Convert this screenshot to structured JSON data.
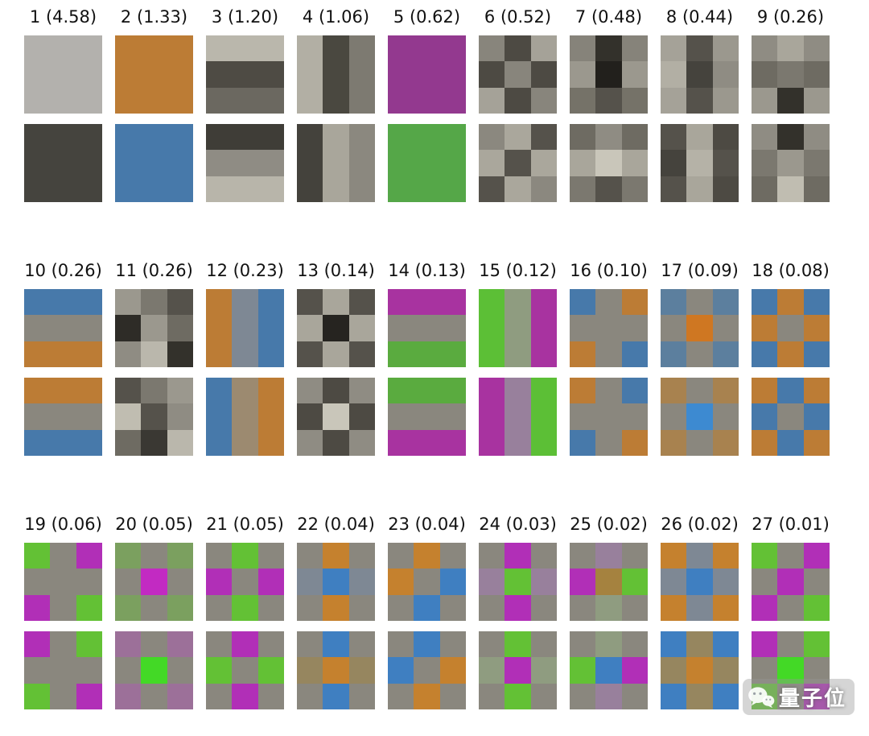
{
  "watermark": {
    "text": "量子位",
    "icon": "wechat-bubble-icon"
  },
  "colors": {
    "background": "#ffffff",
    "label_text": "#111111"
  },
  "chart_data": {
    "type": "heatmap",
    "title": "",
    "xlabel": "",
    "ylabel": "",
    "description": "27 principal components of 3x3 RGB image patches, ordered by eigenvalue. Each component is labeled 'index (eigenvalue)' and shown as two 3x3 color patches: positive direction (top) and negative direction (bottom). Arranged in 3 rows of 9 components.",
    "patch_grid": 3,
    "rows_of_components": 3,
    "components_per_row": 9,
    "component_indices": [
      1,
      2,
      3,
      4,
      5,
      6,
      7,
      8,
      9,
      10,
      11,
      12,
      13,
      14,
      15,
      16,
      17,
      18,
      19,
      20,
      21,
      22,
      23,
      24,
      25,
      26,
      27
    ],
    "eigenvalues": [
      4.58,
      1.33,
      1.2,
      1.06,
      0.62,
      0.52,
      0.48,
      0.44,
      0.26,
      0.26,
      0.26,
      0.23,
      0.14,
      0.13,
      0.12,
      0.1,
      0.09,
      0.08,
      0.06,
      0.05,
      0.05,
      0.04,
      0.04,
      0.03,
      0.02,
      0.02,
      0.01
    ],
    "components": [
      {
        "index": 1,
        "eigenvalue": 4.58,
        "label": "1 (4.58)",
        "positive": [
          "#b3b1ad",
          "#b3b1ad",
          "#b3b1ad",
          "#b3b1ad",
          "#b3b1ad",
          "#b3b1ad",
          "#b3b1ad",
          "#b3b1ad",
          "#b3b1ad"
        ],
        "negative": [
          "#45443e",
          "#45443e",
          "#45443e",
          "#45443e",
          "#45443e",
          "#45443e",
          "#45443e",
          "#45443e",
          "#45443e"
        ]
      },
      {
        "index": 2,
        "eigenvalue": 1.33,
        "label": "2 (1.33)",
        "positive": [
          "#bc7c35",
          "#bc7c35",
          "#bc7c35",
          "#bc7c35",
          "#bc7c35",
          "#bc7c35",
          "#bc7c35",
          "#bc7c35",
          "#bc7c35"
        ],
        "negative": [
          "#4779aa",
          "#4779aa",
          "#4779aa",
          "#4779aa",
          "#4779aa",
          "#4779aa",
          "#4779aa",
          "#4779aa",
          "#4779aa"
        ]
      },
      {
        "index": 3,
        "eigenvalue": 1.2,
        "label": "3 (1.20)",
        "positive": [
          "#bab7ac",
          "#bab7ac",
          "#bab7ac",
          "#4e4b44",
          "#4e4b44",
          "#4e4b44",
          "#6b6860",
          "#6b6860",
          "#6b6860"
        ],
        "negative": [
          "#3f3d37",
          "#3f3d37",
          "#3f3d37",
          "#8f8c84",
          "#8f8c84",
          "#8f8c84",
          "#b8b5aa",
          "#b8b5aa",
          "#b8b5aa"
        ]
      },
      {
        "index": 4,
        "eigenvalue": 1.06,
        "label": "4 (1.06)",
        "positive": [
          "#b2afa4",
          "#4a4840",
          "#7d7a71",
          "#b2afa4",
          "#4a4840",
          "#7d7a71",
          "#b2afa4",
          "#4a4840",
          "#7d7a71"
        ],
        "negative": [
          "#44423c",
          "#a9a69b",
          "#8b887f",
          "#44423c",
          "#a9a69b",
          "#8b887f",
          "#44423c",
          "#a9a69b",
          "#8b887f"
        ]
      },
      {
        "index": 5,
        "eigenvalue": 0.62,
        "label": "5 (0.62)",
        "positive": [
          "#93398f",
          "#93398f",
          "#93398f",
          "#93398f",
          "#93398f",
          "#93398f",
          "#93398f",
          "#93398f",
          "#93398f"
        ],
        "negative": [
          "#55a748",
          "#55a748",
          "#55a748",
          "#55a748",
          "#55a748",
          "#55a748",
          "#55a748",
          "#55a748",
          "#55a748"
        ]
      },
      {
        "index": 6,
        "eigenvalue": 0.52,
        "label": "6 (0.52)",
        "positive": [
          "#88857c",
          "#4d4a43",
          "#a5a298",
          "#4d4a43",
          "#88857c",
          "#4d4a43",
          "#a5a298",
          "#4d4a43",
          "#88857c"
        ],
        "negative": [
          "#8b887f",
          "#aaa79c",
          "#55524b",
          "#aaa79c",
          "#55524b",
          "#aaa79c",
          "#55524b",
          "#aaa79c",
          "#8b887f"
        ]
      },
      {
        "index": 7,
        "eigenvalue": 0.48,
        "label": "7 (0.48)",
        "positive": [
          "#86837a",
          "#33312b",
          "#86837a",
          "#9b988e",
          "#22201c",
          "#9b988e",
          "#757268",
          "#55524b",
          "#757268"
        ],
        "negative": [
          "#6e6b62",
          "#8f8c83",
          "#6e6b62",
          "#a9a69b",
          "#c9c6ba",
          "#a9a69b",
          "#7b786f",
          "#55524b",
          "#7b786f"
        ]
      },
      {
        "index": 8,
        "eigenvalue": 0.44,
        "label": "8 (0.44)",
        "positive": [
          "#a5a298",
          "#55524b",
          "#9b988e",
          "#b2afa4",
          "#45433d",
          "#8f8c83",
          "#a5a298",
          "#55524b",
          "#9b988e"
        ],
        "negative": [
          "#55524b",
          "#a9a69b",
          "#4d4a43",
          "#45433d",
          "#b5b2a7",
          "#55524b",
          "#55524b",
          "#a9a69b",
          "#4d4a43"
        ]
      },
      {
        "index": 9,
        "eigenvalue": 0.26,
        "label": "9 (0.26)",
        "positive": [
          "#8f8c83",
          "#a9a69b",
          "#8f8c83",
          "#6e6b62",
          "#7b786f",
          "#6e6b62",
          "#9b988e",
          "#33312b",
          "#9b988e"
        ],
        "negative": [
          "#8f8c83",
          "#33312b",
          "#8f8c83",
          "#7b786f",
          "#9b988e",
          "#7b786f",
          "#6e6b62",
          "#c0bdb1",
          "#6e6b62"
        ]
      },
      {
        "index": 10,
        "eigenvalue": 0.26,
        "label": "10 (0.26)",
        "positive": [
          "#4779aa",
          "#4779aa",
          "#4779aa",
          "#8a877e",
          "#8a877e",
          "#8a877e",
          "#bc7c35",
          "#bc7c35",
          "#bc7c35"
        ],
        "negative": [
          "#bc7c35",
          "#bc7c35",
          "#bc7c35",
          "#8a877e",
          "#8a877e",
          "#8a877e",
          "#4779aa",
          "#4779aa",
          "#4779aa"
        ]
      },
      {
        "index": 11,
        "eigenvalue": 0.26,
        "label": "11 (0.26)",
        "positive": [
          "#9b988e",
          "#7b786f",
          "#55524b",
          "#2e2c27",
          "#9b988e",
          "#6e6b62",
          "#8f8c83",
          "#bab7ac",
          "#33312b"
        ],
        "negative": [
          "#55524b",
          "#7b786f",
          "#9b988e",
          "#c0bdb1",
          "#55524b",
          "#8f8c83",
          "#6e6b62",
          "#3a3833",
          "#bab7ac"
        ]
      },
      {
        "index": 12,
        "eigenvalue": 0.23,
        "label": "12 (0.23)",
        "positive": [
          "#bc7c35",
          "#7e8894",
          "#4779aa",
          "#bc7c35",
          "#7e8894",
          "#4779aa",
          "#bc7c35",
          "#7e8894",
          "#4779aa"
        ],
        "negative": [
          "#4779aa",
          "#9c8a70",
          "#bc7c35",
          "#4779aa",
          "#9c8a70",
          "#bc7c35",
          "#4779aa",
          "#9c8a70",
          "#bc7c35"
        ]
      },
      {
        "index": 13,
        "eigenvalue": 0.14,
        "label": "13 (0.14)",
        "positive": [
          "#55524b",
          "#a9a69b",
          "#55524b",
          "#a9a69b",
          "#262420",
          "#a9a69b",
          "#55524b",
          "#a9a69b",
          "#55524b"
        ],
        "negative": [
          "#8f8c83",
          "#4d4a43",
          "#8f8c83",
          "#4d4a43",
          "#c9c6ba",
          "#4d4a43",
          "#8f8c83",
          "#4d4a43",
          "#8f8c83"
        ]
      },
      {
        "index": 14,
        "eigenvalue": 0.13,
        "label": "14 (0.13)",
        "positive": [
          "#a833a0",
          "#a833a0",
          "#a833a0",
          "#8a877e",
          "#8a877e",
          "#8a877e",
          "#5aab3f",
          "#5aab3f",
          "#5aab3f"
        ],
        "negative": [
          "#5aab3f",
          "#5aab3f",
          "#5aab3f",
          "#8a877e",
          "#8a877e",
          "#8a877e",
          "#a833a0",
          "#a833a0",
          "#a833a0"
        ]
      },
      {
        "index": 15,
        "eigenvalue": 0.12,
        "label": "15 (0.12)",
        "positive": [
          "#5cbf36",
          "#8f9c80",
          "#a833a0",
          "#5cbf36",
          "#8f9c80",
          "#a833a0",
          "#5cbf36",
          "#8f9c80",
          "#a833a0"
        ],
        "negative": [
          "#a833a0",
          "#98809c",
          "#5cbf36",
          "#a833a0",
          "#98809c",
          "#5cbf36",
          "#a833a0",
          "#98809c",
          "#5cbf36"
        ]
      },
      {
        "index": 16,
        "eigenvalue": 0.1,
        "label": "16 (0.10)",
        "positive": [
          "#4779aa",
          "#8a877e",
          "#bc7c35",
          "#8a877e",
          "#8a877e",
          "#8a877e",
          "#bc7c35",
          "#8a877e",
          "#4779aa"
        ],
        "negative": [
          "#bc7c35",
          "#8a877e",
          "#4779aa",
          "#8a877e",
          "#8a877e",
          "#8a877e",
          "#4779aa",
          "#8a877e",
          "#bc7c35"
        ]
      },
      {
        "index": 17,
        "eigenvalue": 0.09,
        "label": "17 (0.09)",
        "positive": [
          "#5c7f9e",
          "#8a877e",
          "#5c7f9e",
          "#8a877e",
          "#cf7722",
          "#8a877e",
          "#5c7f9e",
          "#8a877e",
          "#5c7f9e"
        ],
        "negative": [
          "#a8824f",
          "#8a877e",
          "#a8824f",
          "#8a877e",
          "#3d8ad1",
          "#8a877e",
          "#a8824f",
          "#8a877e",
          "#a8824f"
        ]
      },
      {
        "index": 18,
        "eigenvalue": 0.08,
        "label": "18 (0.08)",
        "positive": [
          "#4779aa",
          "#bc7c35",
          "#4779aa",
          "#bc7c35",
          "#8a877e",
          "#bc7c35",
          "#4779aa",
          "#bc7c35",
          "#4779aa"
        ],
        "negative": [
          "#bc7c35",
          "#4779aa",
          "#bc7c35",
          "#4779aa",
          "#8a877e",
          "#4779aa",
          "#bc7c35",
          "#4779aa",
          "#bc7c35"
        ]
      },
      {
        "index": 19,
        "eigenvalue": 0.06,
        "label": "19 (0.06)",
        "positive": [
          "#63c135",
          "#8a877e",
          "#b12fb7",
          "#8a877e",
          "#8a877e",
          "#8a877e",
          "#b12fb7",
          "#8a877e",
          "#63c135"
        ],
        "negative": [
          "#b12fb7",
          "#8a877e",
          "#63c135",
          "#8a877e",
          "#8a877e",
          "#8a877e",
          "#63c135",
          "#8a877e",
          "#b12fb7"
        ]
      },
      {
        "index": 20,
        "eigenvalue": 0.05,
        "label": "20 (0.05)",
        "positive": [
          "#7ba05f",
          "#8a877e",
          "#7ba05f",
          "#8a877e",
          "#c22ac2",
          "#8a877e",
          "#7ba05f",
          "#8a877e",
          "#7ba05f"
        ],
        "negative": [
          "#9c7099",
          "#8a877e",
          "#9c7099",
          "#8a877e",
          "#43d926",
          "#8a877e",
          "#9c7099",
          "#8a877e",
          "#9c7099"
        ]
      },
      {
        "index": 21,
        "eigenvalue": 0.05,
        "label": "21 (0.05)",
        "positive": [
          "#8a877e",
          "#63c135",
          "#8a877e",
          "#b12fb7",
          "#8a877e",
          "#b12fb7",
          "#8a877e",
          "#63c135",
          "#8a877e"
        ],
        "negative": [
          "#8a877e",
          "#b12fb7",
          "#8a877e",
          "#63c135",
          "#8a877e",
          "#63c135",
          "#8a877e",
          "#b12fb7",
          "#8a877e"
        ]
      },
      {
        "index": 22,
        "eigenvalue": 0.04,
        "label": "22 (0.04)",
        "positive": [
          "#8a877e",
          "#c5812e",
          "#8a877e",
          "#7e8894",
          "#3f7fc1",
          "#7e8894",
          "#8a877e",
          "#c5812e",
          "#8a877e"
        ],
        "negative": [
          "#8a877e",
          "#3f7fc1",
          "#8a877e",
          "#96865f",
          "#c5812e",
          "#96865f",
          "#8a877e",
          "#3f7fc1",
          "#8a877e"
        ]
      },
      {
        "index": 23,
        "eigenvalue": 0.04,
        "label": "23 (0.04)",
        "positive": [
          "#8a877e",
          "#c5812e",
          "#8a877e",
          "#c5812e",
          "#8a877e",
          "#3f7fc1",
          "#8a877e",
          "#3f7fc1",
          "#8a877e"
        ],
        "negative": [
          "#8a877e",
          "#3f7fc1",
          "#8a877e",
          "#3f7fc1",
          "#8a877e",
          "#c5812e",
          "#8a877e",
          "#c5812e",
          "#8a877e"
        ]
      },
      {
        "index": 24,
        "eigenvalue": 0.03,
        "label": "24 (0.03)",
        "positive": [
          "#8a877e",
          "#b12fb7",
          "#8a877e",
          "#98809c",
          "#63c135",
          "#98809c",
          "#8a877e",
          "#b12fb7",
          "#8a877e"
        ],
        "negative": [
          "#8a877e",
          "#63c135",
          "#8a877e",
          "#8f9c80",
          "#b12fb7",
          "#8f9c80",
          "#8a877e",
          "#63c135",
          "#8a877e"
        ]
      },
      {
        "index": 25,
        "eigenvalue": 0.02,
        "label": "25 (0.02)",
        "positive": [
          "#8a877e",
          "#98809c",
          "#8a877e",
          "#b12fb7",
          "#a5823f",
          "#63c135",
          "#8a877e",
          "#8f9c80",
          "#8a877e"
        ],
        "negative": [
          "#8a877e",
          "#8f9c80",
          "#8a877e",
          "#63c135",
          "#3f7fc1",
          "#b12fb7",
          "#8a877e",
          "#98809c",
          "#8a877e"
        ]
      },
      {
        "index": 26,
        "eigenvalue": 0.02,
        "label": "26 (0.02)",
        "positive": [
          "#c5812e",
          "#7e8894",
          "#c5812e",
          "#7e8894",
          "#3f7fc1",
          "#7e8894",
          "#c5812e",
          "#7e8894",
          "#c5812e"
        ],
        "negative": [
          "#3f7fc1",
          "#96865f",
          "#3f7fc1",
          "#96865f",
          "#c5812e",
          "#96865f",
          "#3f7fc1",
          "#96865f",
          "#3f7fc1"
        ]
      },
      {
        "index": 27,
        "eigenvalue": 0.01,
        "label": "27 (0.01)",
        "positive": [
          "#63c135",
          "#8a877e",
          "#b12fb7",
          "#8a877e",
          "#b12fb7",
          "#8a877e",
          "#b12fb7",
          "#8a877e",
          "#63c135"
        ],
        "negative": [
          "#b12fb7",
          "#8a877e",
          "#63c135",
          "#8a877e",
          "#43d926",
          "#8a877e",
          "#63c135",
          "#8a877e",
          "#b12fb7"
        ]
      }
    ]
  }
}
